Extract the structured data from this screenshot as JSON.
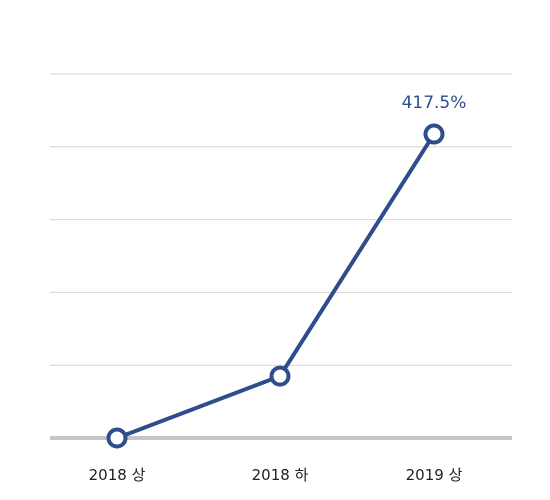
{
  "chart_data": {
    "type": "line",
    "categories": [
      "2018 상",
      "2018 하",
      "2019 상"
    ],
    "series": [
      {
        "values": [
          0,
          85,
          417.5
        ]
      }
    ],
    "data_labels": [
      "",
      "",
      "417.5%"
    ],
    "ylim": [
      0,
      500
    ],
    "grid": true,
    "colors": {
      "line": "#2e4d8a",
      "label": "#2e4d8a",
      "marker_fill": "#ffffff",
      "grid": "#d4d4d4",
      "baseline": "#c4c4cc"
    }
  }
}
